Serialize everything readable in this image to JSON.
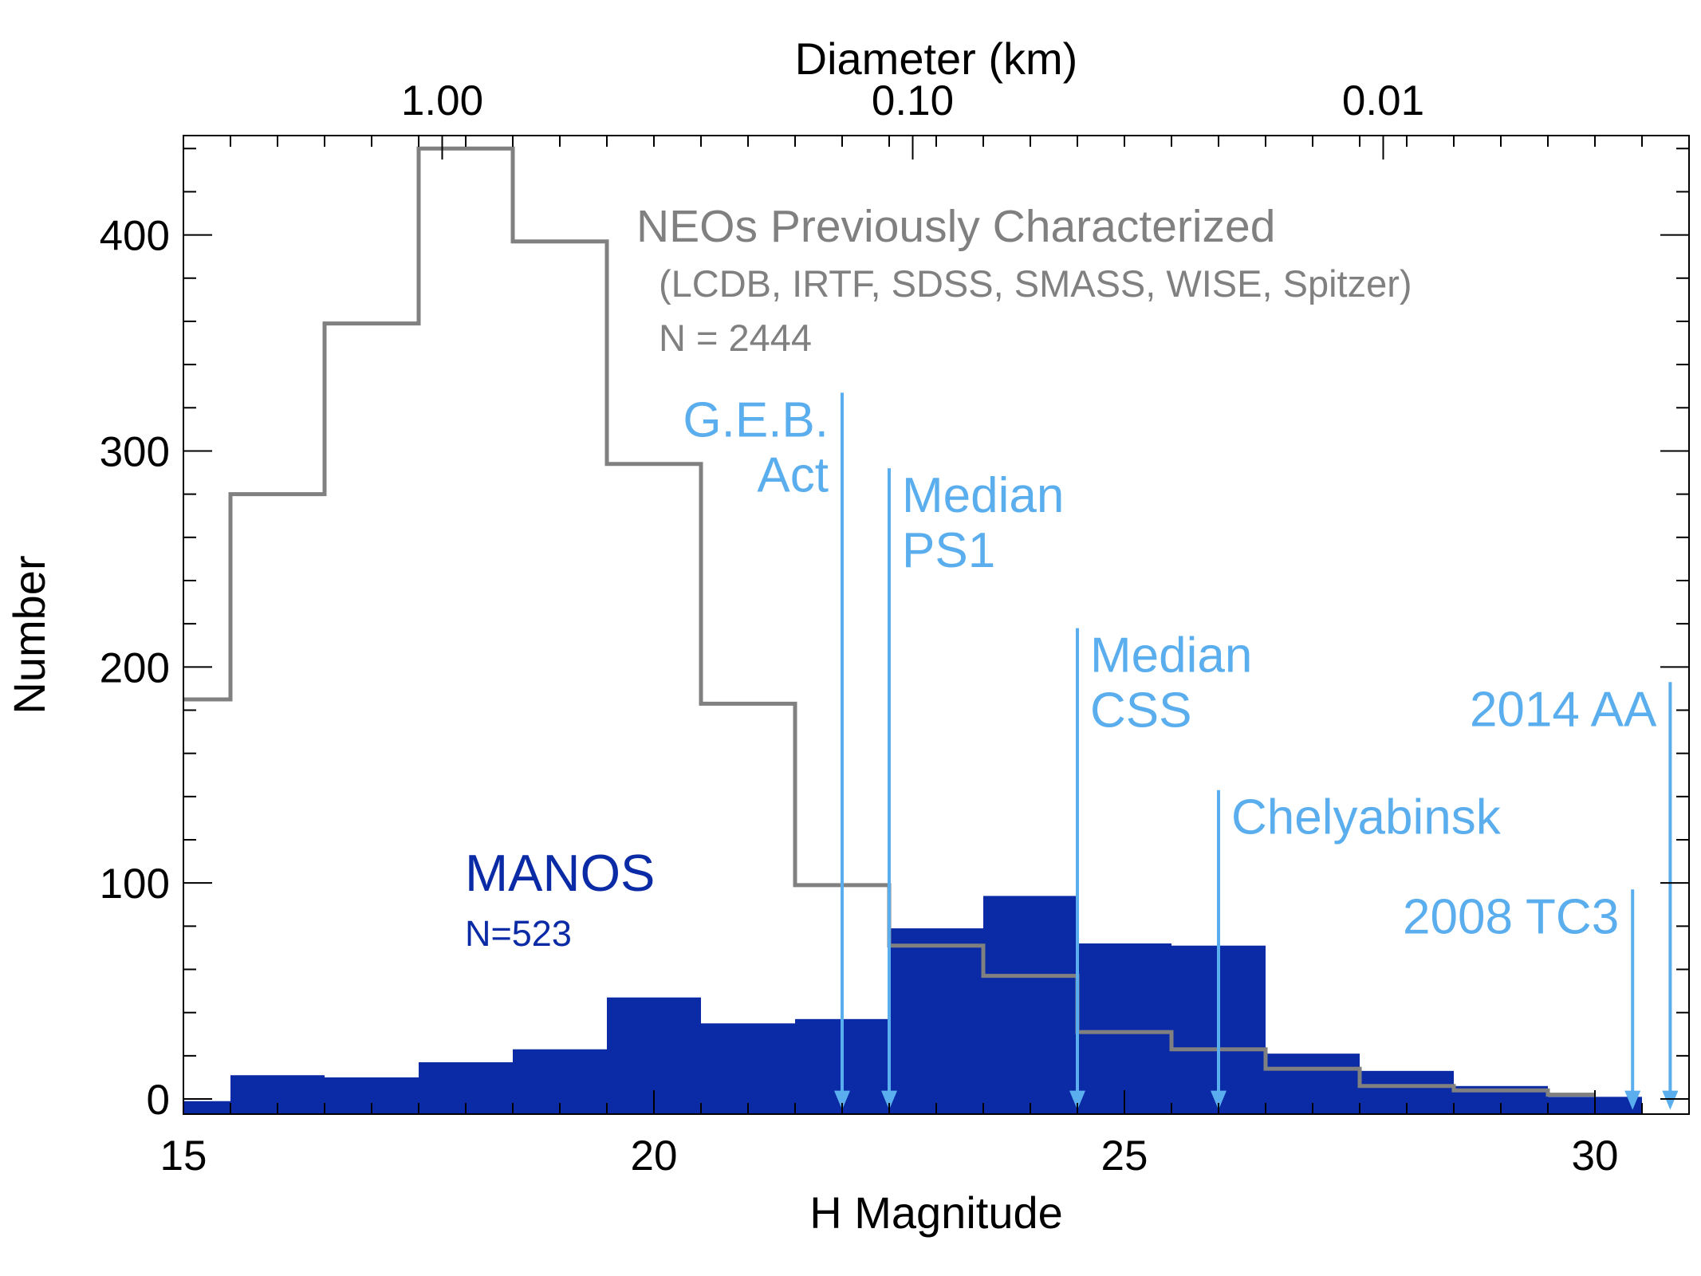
{
  "chart_data": {
    "type": "bar",
    "xlabel": "H Magnitude",
    "ylabel": "Number",
    "top_axis_label": "Diameter (km)",
    "xlim": [
      15,
      31
    ],
    "ylim": [
      -7,
      446
    ],
    "x_ticks": [
      15,
      20,
      25,
      30
    ],
    "x_tick_labels": [
      "15",
      "20",
      "25",
      "30"
    ],
    "y_ticks": [
      0,
      100,
      200,
      300,
      400
    ],
    "y_tick_labels": [
      "0",
      "100",
      "200",
      "300",
      "400"
    ],
    "top_ticks": [
      {
        "h": 17.75,
        "label": "1.00"
      },
      {
        "h": 22.75,
        "label": "0.10"
      },
      {
        "h": 27.75,
        "label": "0.01"
      }
    ],
    "colors": {
      "manos": "#0a2ba5",
      "previous": "#808080",
      "markers": "#5aaeee"
    },
    "series": [
      {
        "name": "MANOS",
        "label": "MANOS",
        "sublabel": "N=523",
        "style": "filled-step",
        "bins": [
          {
            "x0": 15.0,
            "x1": 15.5,
            "v": -1
          },
          {
            "x0": 15.5,
            "x1": 16.5,
            "v": 11
          },
          {
            "x0": 16.5,
            "x1": 17.5,
            "v": 10
          },
          {
            "x0": 17.5,
            "x1": 18.5,
            "v": 17
          },
          {
            "x0": 18.5,
            "x1": 19.5,
            "v": 23
          },
          {
            "x0": 19.5,
            "x1": 20.5,
            "v": 47
          },
          {
            "x0": 20.5,
            "x1": 21.5,
            "v": 35
          },
          {
            "x0": 21.5,
            "x1": 22.5,
            "v": 37
          },
          {
            "x0": 22.5,
            "x1": 23.5,
            "v": 79
          },
          {
            "x0": 23.5,
            "x1": 24.5,
            "v": 94
          },
          {
            "x0": 24.5,
            "x1": 25.5,
            "v": 72
          },
          {
            "x0": 25.5,
            "x1": 26.5,
            "v": 71
          },
          {
            "x0": 26.5,
            "x1": 27.5,
            "v": 21
          },
          {
            "x0": 27.5,
            "x1": 28.5,
            "v": 13
          },
          {
            "x0": 28.5,
            "x1": 29.5,
            "v": 6
          },
          {
            "x0": 29.5,
            "x1": 30.5,
            "v": 1
          }
        ]
      },
      {
        "name": "NEOs Previously Characterized",
        "label": "NEOs Previously Characterized",
        "sublabel": "(LCDB, IRTF, SDSS, SMASS, WISE, Spitzer)",
        "count_label": "N = 2444",
        "style": "step-line",
        "bins": [
          {
            "x0": 15.0,
            "x1": 15.5,
            "v": 185
          },
          {
            "x0": 15.5,
            "x1": 16.5,
            "v": 280
          },
          {
            "x0": 16.5,
            "x1": 17.5,
            "v": 359
          },
          {
            "x0": 17.5,
            "x1": 18.5,
            "v": 440
          },
          {
            "x0": 18.5,
            "x1": 19.5,
            "v": 397
          },
          {
            "x0": 19.5,
            "x1": 20.5,
            "v": 294
          },
          {
            "x0": 20.5,
            "x1": 21.5,
            "v": 183
          },
          {
            "x0": 21.5,
            "x1": 22.5,
            "v": 99
          },
          {
            "x0": 22.5,
            "x1": 23.5,
            "v": 71
          },
          {
            "x0": 23.5,
            "x1": 24.5,
            "v": 57
          },
          {
            "x0": 24.5,
            "x1": 25.5,
            "v": 31
          },
          {
            "x0": 25.5,
            "x1": 26.5,
            "v": 23
          },
          {
            "x0": 26.5,
            "x1": 27.5,
            "v": 14
          },
          {
            "x0": 27.5,
            "x1": 28.5,
            "v": 6
          },
          {
            "x0": 28.5,
            "x1": 29.5,
            "v": 4
          },
          {
            "x0": 29.5,
            "x1": 30.0,
            "v": 2
          }
        ]
      }
    ],
    "annotations": [
      {
        "id": "geb",
        "lines": [
          "G.E.B.",
          "Act"
        ],
        "h": 22.0,
        "top": 327,
        "label_side": "left"
      },
      {
        "id": "ps1",
        "lines": [
          "Median",
          "PS1"
        ],
        "h": 22.5,
        "top": 292,
        "label_side": "right"
      },
      {
        "id": "css",
        "lines": [
          "Median",
          "CSS"
        ],
        "h": 24.5,
        "top": 218,
        "label_side": "right"
      },
      {
        "id": "chelyabinsk",
        "lines": [
          "Chelyabinsk"
        ],
        "h": 26.0,
        "top": 143,
        "label_side": "right"
      },
      {
        "id": "tc3",
        "lines": [
          "2008 TC3"
        ],
        "h": 30.4,
        "top": 97,
        "label_side": "left"
      },
      {
        "id": "aa",
        "lines": [
          "2014 AA"
        ],
        "h": 30.8,
        "top": 193,
        "label_side": "left"
      }
    ]
  }
}
